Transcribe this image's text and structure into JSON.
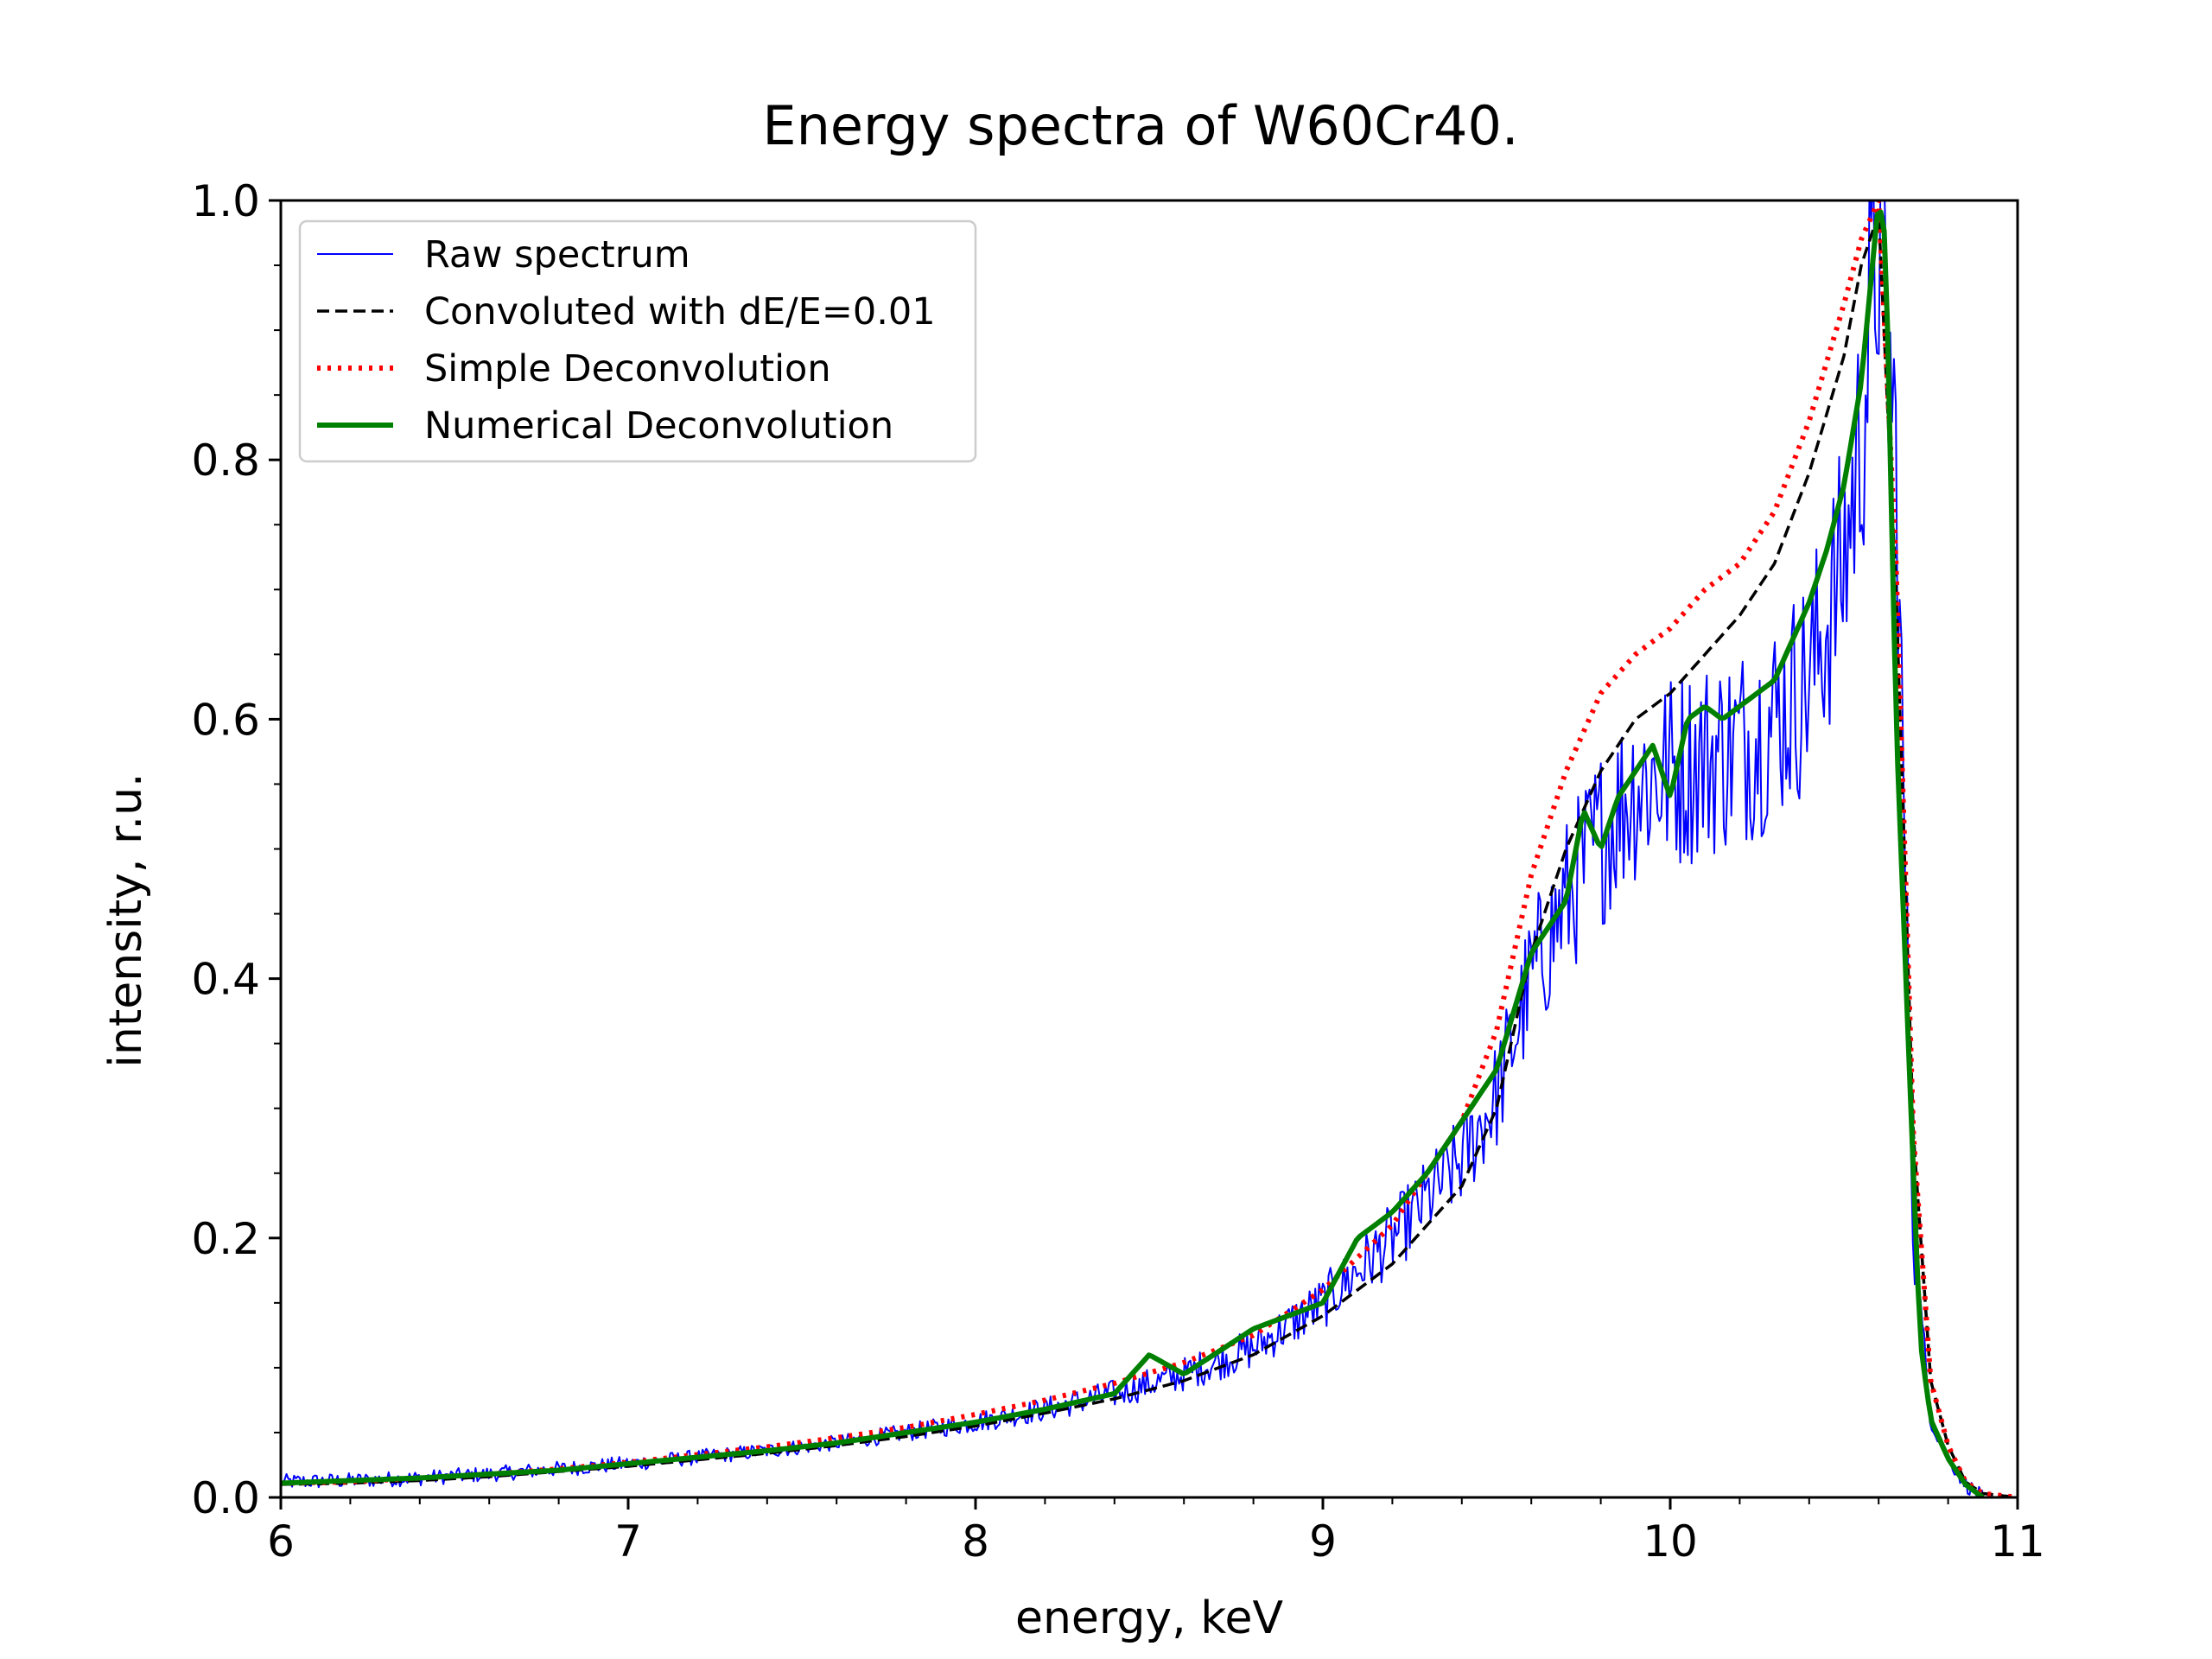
{
  "chart_data": {
    "type": "line",
    "title": "Energy spectra of W60Cr40.",
    "xlabel": "energy, keV",
    "ylabel": "intensity, r.u.",
    "xlim": [
      6,
      11
    ],
    "ylim": [
      0,
      1
    ],
    "x_ticks": [
      6,
      7,
      8,
      9,
      10,
      11
    ],
    "x_tick_labels": [
      "6",
      "7",
      "8",
      "9",
      "10",
      "11"
    ],
    "x_minor_step": 0.2,
    "y_ticks": [
      0,
      0.2,
      0.4,
      0.6,
      0.8,
      1.0
    ],
    "y_tick_labels": [
      "0.0",
      "0.2",
      "0.4",
      "0.6",
      "0.8",
      "1.0"
    ],
    "y_minor_step": 0.05,
    "grid": false,
    "legend_position": "top-left",
    "series": [
      {
        "name": "Raw spectrum",
        "color": "#0000ff",
        "style": "solid-thin",
        "x": [
          6.0,
          6.2,
          6.4,
          6.6,
          6.8,
          7.0,
          7.2,
          7.4,
          7.6,
          7.8,
          8.0,
          8.2,
          8.4,
          8.6,
          8.8,
          9.0,
          9.2,
          9.4,
          9.5,
          9.6,
          9.7,
          9.8,
          9.9,
          10.0,
          10.1,
          10.2,
          10.3,
          10.4,
          10.5,
          10.55,
          10.6,
          10.65,
          10.7,
          10.75,
          10.8,
          10.85,
          10.9
        ],
        "values": [
          0.012,
          0.013,
          0.015,
          0.018,
          0.022,
          0.026,
          0.031,
          0.036,
          0.042,
          0.05,
          0.058,
          0.068,
          0.08,
          0.095,
          0.115,
          0.15,
          0.2,
          0.26,
          0.31,
          0.4,
          0.46,
          0.51,
          0.55,
          0.56,
          0.57,
          0.58,
          0.6,
          0.63,
          0.72,
          0.82,
          0.98,
          0.8,
          0.2,
          0.06,
          0.03,
          0.01,
          0.0
        ],
        "noise": true
      },
      {
        "name": "Convoluted with dE/E=0.01",
        "color": "#000000",
        "style": "dashed",
        "x": [
          6.0,
          6.2,
          6.4,
          6.6,
          6.8,
          7.0,
          7.2,
          7.4,
          7.6,
          7.8,
          8.0,
          8.2,
          8.4,
          8.6,
          8.8,
          9.0,
          9.2,
          9.4,
          9.5,
          9.6,
          9.7,
          9.8,
          9.9,
          10.0,
          10.1,
          10.2,
          10.3,
          10.4,
          10.5,
          10.55,
          10.6,
          10.65,
          10.7,
          10.75,
          10.8,
          10.85,
          10.9,
          11.0
        ],
        "values": [
          0.01,
          0.011,
          0.013,
          0.016,
          0.02,
          0.024,
          0.029,
          0.034,
          0.04,
          0.047,
          0.055,
          0.065,
          0.076,
          0.09,
          0.11,
          0.14,
          0.18,
          0.24,
          0.3,
          0.42,
          0.5,
          0.56,
          0.6,
          0.62,
          0.65,
          0.68,
          0.72,
          0.79,
          0.88,
          0.95,
          0.99,
          0.7,
          0.28,
          0.09,
          0.04,
          0.012,
          0.003,
          0.0
        ]
      },
      {
        "name": "Simple Deconvolution",
        "color": "#ff0000",
        "style": "dotted",
        "x": [
          6.0,
          6.2,
          6.4,
          6.6,
          6.8,
          7.0,
          7.2,
          7.4,
          7.6,
          7.8,
          8.0,
          8.2,
          8.4,
          8.6,
          8.8,
          9.0,
          9.2,
          9.4,
          9.5,
          9.6,
          9.7,
          9.8,
          9.9,
          10.0,
          10.1,
          10.2,
          10.3,
          10.4,
          10.5,
          10.55,
          10.6,
          10.65,
          10.7,
          10.75,
          10.8,
          10.85,
          10.9,
          11.0
        ],
        "values": [
          0.011,
          0.012,
          0.015,
          0.018,
          0.022,
          0.027,
          0.033,
          0.039,
          0.046,
          0.054,
          0.064,
          0.075,
          0.088,
          0.104,
          0.125,
          0.16,
          0.21,
          0.29,
          0.36,
          0.48,
          0.56,
          0.62,
          0.65,
          0.67,
          0.7,
          0.72,
          0.76,
          0.83,
          0.92,
          0.97,
          1.0,
          0.72,
          0.28,
          0.09,
          0.04,
          0.012,
          0.003,
          0.0
        ]
      },
      {
        "name": "Numerical Deconvolution",
        "color": "#008000",
        "style": "solid-thick",
        "x": [
          6.0,
          6.2,
          6.4,
          6.6,
          6.8,
          7.0,
          7.2,
          7.4,
          7.6,
          7.8,
          8.0,
          8.2,
          8.4,
          8.5,
          8.6,
          8.8,
          9.0,
          9.1,
          9.2,
          9.3,
          9.4,
          9.5,
          9.6,
          9.7,
          9.75,
          9.8,
          9.85,
          9.9,
          9.95,
          10.0,
          10.05,
          10.1,
          10.15,
          10.2,
          10.3,
          10.35,
          10.4,
          10.45,
          10.5,
          10.55,
          10.6,
          10.62,
          10.65,
          10.7,
          10.72,
          10.75,
          10.8,
          10.85,
          10.9
        ],
        "values": [
          0.011,
          0.013,
          0.015,
          0.018,
          0.021,
          0.026,
          0.031,
          0.036,
          0.042,
          0.05,
          0.058,
          0.068,
          0.08,
          0.11,
          0.095,
          0.13,
          0.15,
          0.2,
          0.22,
          0.25,
          0.29,
          0.33,
          0.42,
          0.46,
          0.53,
          0.5,
          0.54,
          0.56,
          0.58,
          0.54,
          0.6,
          0.61,
          0.6,
          0.61,
          0.63,
          0.66,
          0.69,
          0.73,
          0.78,
          0.86,
          1.0,
          0.97,
          0.6,
          0.25,
          0.12,
          0.06,
          0.03,
          0.01,
          0.0
        ]
      }
    ]
  }
}
